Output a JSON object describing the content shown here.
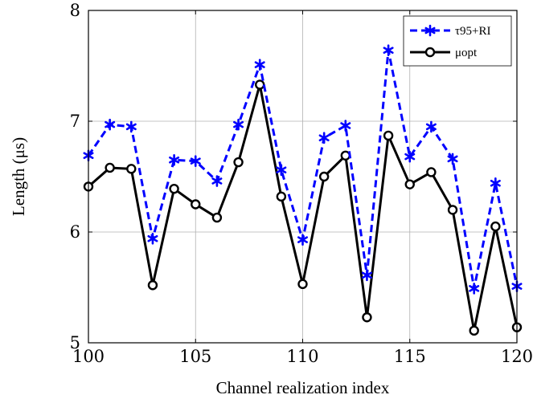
{
  "chart_data": {
    "type": "line",
    "xlabel": "Channel realization index",
    "ylabel": "Length (μs)",
    "xlim": [
      100,
      120
    ],
    "ylim": [
      5,
      8
    ],
    "xticks": [
      "100",
      "105",
      "110",
      "115",
      "120"
    ],
    "yticks": [
      "5",
      "6",
      "7",
      "8"
    ],
    "grid": true,
    "legend_position": "top-right",
    "x": [
      100,
      101,
      102,
      103,
      104,
      105,
      106,
      107,
      108,
      109,
      110,
      111,
      112,
      113,
      114,
      115,
      116,
      117,
      118,
      119,
      120
    ],
    "series": [
      {
        "name": "τ95+RI",
        "color": "#0000ff",
        "style": "dashed",
        "marker": "asterisk",
        "values": [
          6.69,
          6.97,
          6.95,
          5.94,
          6.65,
          6.64,
          6.46,
          6.97,
          7.51,
          6.56,
          5.93,
          6.85,
          6.96,
          5.61,
          7.64,
          6.68,
          6.95,
          6.66,
          5.49,
          6.44,
          5.51
        ]
      },
      {
        "name": "μopt",
        "color": "#000000",
        "style": "solid",
        "marker": "circle",
        "values": [
          6.41,
          6.58,
          6.57,
          5.52,
          6.39,
          6.25,
          6.13,
          6.63,
          7.33,
          6.32,
          5.53,
          6.5,
          6.69,
          5.23,
          6.87,
          6.43,
          6.54,
          6.2,
          5.11,
          6.05,
          5.14
        ]
      }
    ]
  }
}
